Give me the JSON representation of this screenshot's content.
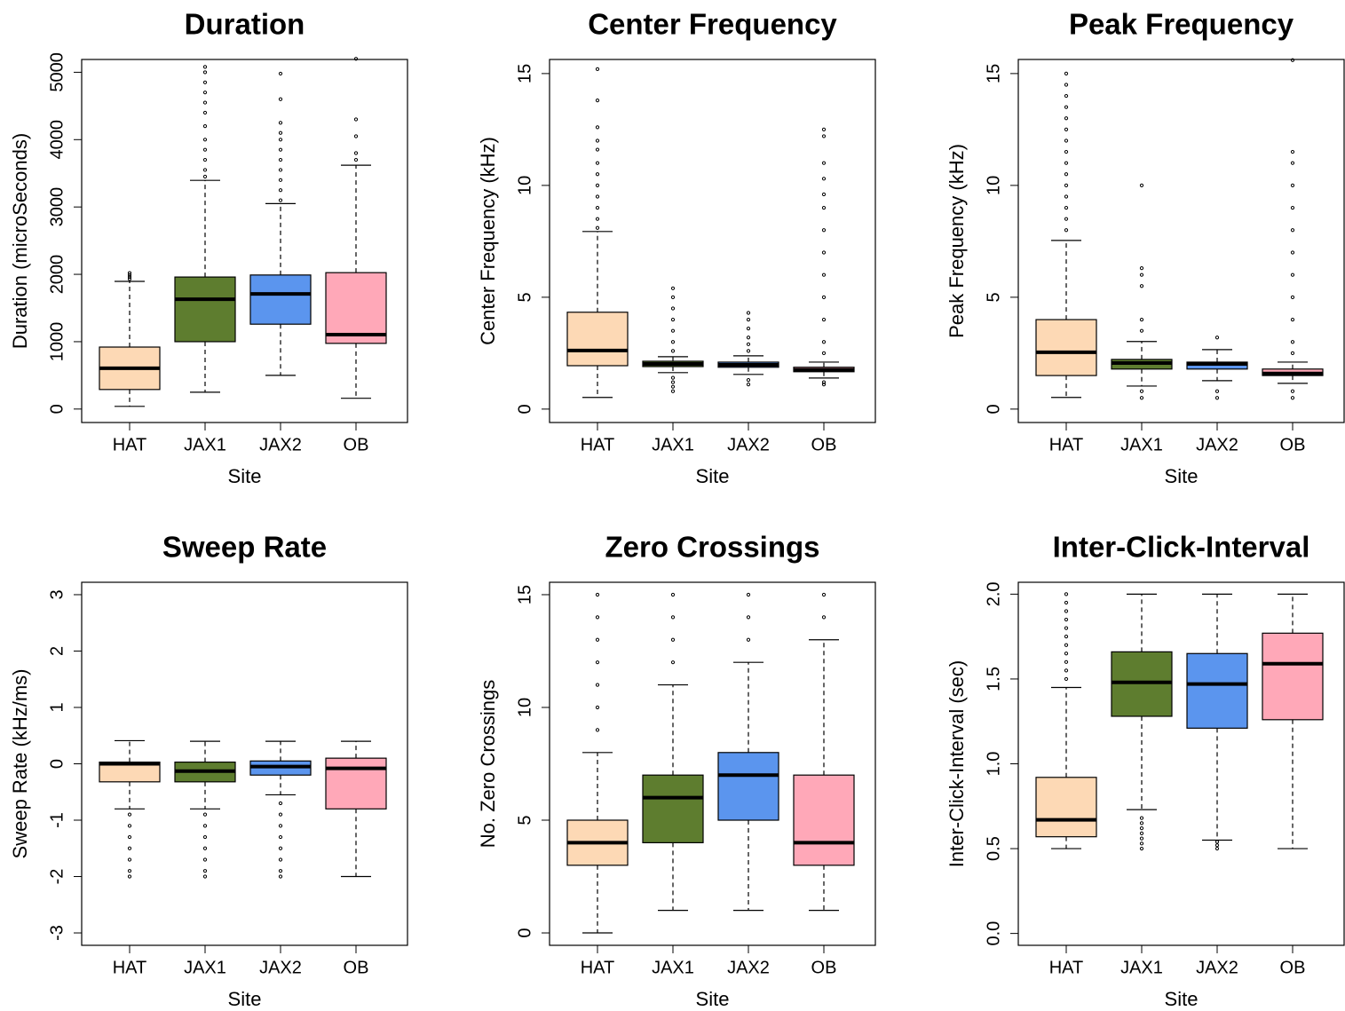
{
  "chart_data": [
    {
      "type": "box",
      "title": "Duration",
      "xlabel": "Site",
      "ylabel": "Duration (microSeconds)",
      "categories": [
        "HAT",
        "JAX1",
        "JAX2",
        "OB"
      ],
      "colors": [
        "#fdd9b5",
        "#5e7d2f",
        "#5b95ee",
        "#ffa8b8"
      ],
      "ylim": [
        -200,
        5190
      ],
      "yticks": [
        0,
        1000,
        2000,
        3000,
        4000,
        5000
      ],
      "boxes": [
        {
          "whisker_low": 40,
          "q1": 290,
          "median": 605,
          "q3": 920,
          "whisker_high": 1895,
          "outliers": [
            1930,
            1960,
            1990,
            2020
          ]
        },
        {
          "whisker_low": 250,
          "q1": 1000,
          "median": 1630,
          "q3": 1960,
          "whisker_high": 3395,
          "outliers": [
            3450,
            3550,
            3700,
            3850,
            4000,
            4200,
            4400,
            4550,
            4700,
            4850,
            5000,
            5080
          ]
        },
        {
          "whisker_low": 500,
          "q1": 1260,
          "median": 1710,
          "q3": 1990,
          "whisker_high": 3050,
          "outliers": [
            3100,
            3250,
            3400,
            3550,
            3700,
            3850,
            4000,
            4100,
            4250,
            4600,
            4980
          ]
        },
        {
          "whisker_low": 160,
          "q1": 975,
          "median": 1105,
          "q3": 2025,
          "whisker_high": 3620,
          "outliers": [
            3700,
            3800,
            4050,
            4300,
            5200
          ]
        }
      ]
    },
    {
      "type": "box",
      "title": "Center Frequency",
      "xlabel": "Site",
      "ylabel": "Center Frequency (kHz)",
      "categories": [
        "HAT",
        "JAX1",
        "JAX2",
        "OB"
      ],
      "colors": [
        "#fdd9b5",
        "#5e7d2f",
        "#5b95ee",
        "#ffa8b8"
      ],
      "ylim": [
        -0.6,
        15.63
      ],
      "yticks": [
        0,
        5,
        10,
        15
      ],
      "boxes": [
        {
          "whisker_low": 0.52,
          "q1": 1.94,
          "median": 2.62,
          "q3": 4.33,
          "whisker_high": 7.94,
          "outliers": [
            8.1,
            8.5,
            9,
            9.5,
            10,
            10.5,
            11,
            11.6,
            12,
            12.6,
            13.8,
            15.2
          ]
        },
        {
          "whisker_low": 1.63,
          "q1": 1.9,
          "median": 2.02,
          "q3": 2.14,
          "whisker_high": 2.34,
          "outliers": [
            0.8,
            1.0,
            1.2,
            1.4,
            2.6,
            3,
            3.5,
            4,
            4.5,
            5,
            5.4
          ]
        },
        {
          "whisker_low": 1.55,
          "q1": 1.87,
          "median": 1.98,
          "q3": 2.1,
          "whisker_high": 2.38,
          "outliers": [
            1.1,
            1.3,
            2.6,
            2.9,
            3.2,
            3.6,
            4.0,
            4.3
          ]
        },
        {
          "whisker_low": 1.39,
          "q1": 1.67,
          "median": 1.75,
          "q3": 1.87,
          "whisker_high": 2.1,
          "outliers": [
            1.1,
            1.2,
            2.5,
            3,
            4,
            5,
            6,
            7,
            8,
            9,
            9.6,
            10.3,
            11,
            12.2,
            12.5
          ]
        }
      ]
    },
    {
      "type": "box",
      "title": "Peak Frequency",
      "xlabel": "Site",
      "ylabel": "Peak Frequency (kHz)",
      "categories": [
        "HAT",
        "JAX1",
        "JAX2",
        "OB"
      ],
      "colors": [
        "#fdd9b5",
        "#5e7d2f",
        "#5b95ee",
        "#ffa8b8"
      ],
      "ylim": [
        -0.6,
        15.63
      ],
      "yticks": [
        0,
        5,
        10,
        15
      ],
      "boxes": [
        {
          "whisker_low": 0.52,
          "q1": 1.5,
          "median": 2.54,
          "q3": 4.0,
          "whisker_high": 7.54,
          "outliers": [
            8,
            8.5,
            9,
            9.5,
            10,
            10.5,
            11,
            11.5,
            12,
            12.5,
            13,
            13.5,
            14,
            14.5,
            15
          ]
        },
        {
          "whisker_low": 1.03,
          "q1": 1.79,
          "median": 2.06,
          "q3": 2.22,
          "whisker_high": 3.02,
          "outliers": [
            0.5,
            0.8,
            3.5,
            4,
            5.5,
            6,
            6.3,
            10
          ]
        },
        {
          "whisker_low": 1.27,
          "q1": 1.79,
          "median": 2.02,
          "q3": 2.1,
          "whisker_high": 2.66,
          "outliers": [
            0.5,
            0.8,
            3.2
          ]
        },
        {
          "whisker_low": 1.15,
          "q1": 1.5,
          "median": 1.59,
          "q3": 1.79,
          "whisker_high": 2.1,
          "outliers": [
            0.5,
            0.8,
            2.5,
            3,
            4,
            5,
            6,
            7,
            8,
            9,
            10,
            11,
            11.5,
            15.6
          ]
        }
      ]
    },
    {
      "type": "box",
      "title": "Sweep Rate",
      "xlabel": "Site",
      "ylabel": "Sweep Rate (kHz/ms)",
      "categories": [
        "HAT",
        "JAX1",
        "JAX2",
        "OB"
      ],
      "colors": [
        "#fdd9b5",
        "#5e7d2f",
        "#5b95ee",
        "#ffa8b8"
      ],
      "ylim": [
        -3.22,
        3.22
      ],
      "yticks": [
        -3,
        -2,
        -1,
        0,
        1,
        2,
        3
      ],
      "boxes": [
        {
          "whisker_low": -0.8,
          "q1": -0.32,
          "median": 0,
          "q3": 0.03,
          "whisker_high": 0.41,
          "outliers": [
            -0.9,
            -1.1,
            -1.3,
            -1.5,
            -1.7,
            -1.9,
            -2
          ]
        },
        {
          "whisker_low": -0.8,
          "q1": -0.32,
          "median": -0.13,
          "q3": 0.03,
          "whisker_high": 0.4,
          "outliers": [
            -0.9,
            -1.1,
            -1.3,
            -1.5,
            -1.7,
            -1.9,
            -2
          ]
        },
        {
          "whisker_low": -0.55,
          "q1": -0.2,
          "median": -0.05,
          "q3": 0.05,
          "whisker_high": 0.4,
          "outliers": [
            -0.7,
            -0.9,
            -1.1,
            -1.3,
            -1.5,
            -1.7,
            -1.9,
            -2
          ]
        },
        {
          "whisker_low": -2,
          "q1": -0.8,
          "median": -0.08,
          "q3": 0.1,
          "whisker_high": 0.4,
          "outliers": []
        }
      ]
    },
    {
      "type": "box",
      "title": "Zero Crossings",
      "xlabel": "Site",
      "ylabel": "No. Zero Crossings",
      "categories": [
        "HAT",
        "JAX1",
        "JAX2",
        "OB"
      ],
      "colors": [
        "#fdd9b5",
        "#5e7d2f",
        "#5b95ee",
        "#ffa8b8"
      ],
      "ylim": [
        -0.55,
        15.55
      ],
      "yticks": [
        0,
        5,
        10,
        15
      ],
      "boxes": [
        {
          "whisker_low": 0,
          "q1": 3,
          "median": 4,
          "q3": 5,
          "whisker_high": 8,
          "outliers": [
            9,
            10,
            11,
            12,
            13,
            14,
            15
          ]
        },
        {
          "whisker_low": 1,
          "q1": 4,
          "median": 6,
          "q3": 7,
          "whisker_high": 11,
          "outliers": [
            12,
            13,
            14,
            15
          ]
        },
        {
          "whisker_low": 1,
          "q1": 5,
          "median": 7,
          "q3": 8,
          "whisker_high": 12,
          "outliers": [
            13,
            14,
            15
          ]
        },
        {
          "whisker_low": 1,
          "q1": 3,
          "median": 4,
          "q3": 7,
          "whisker_high": 13,
          "outliers": [
            14,
            15
          ]
        }
      ]
    },
    {
      "type": "box",
      "title": "Inter-Click-Interval",
      "xlabel": "Site",
      "ylabel": "Inter-Click-Interval (sec)",
      "categories": [
        "HAT",
        "JAX1",
        "JAX2",
        "OB"
      ],
      "colors": [
        "#fdd9b5",
        "#5e7d2f",
        "#5b95ee",
        "#ffa8b8"
      ],
      "ylim": [
        -0.07,
        2.07
      ],
      "yticks": [
        {
          "value": 0,
          "label": "0.0"
        },
        0.5,
        {
          "value": 1,
          "label": "1.0"
        },
        1.5,
        {
          "value": 2,
          "label": "2.0"
        }
      ],
      "boxes": [
        {
          "whisker_low": 0.5,
          "q1": 0.57,
          "median": 0.67,
          "q3": 0.92,
          "whisker_high": 1.45,
          "outliers": [
            1.5,
            1.55,
            1.6,
            1.65,
            1.7,
            1.75,
            1.8,
            1.85,
            1.9,
            1.95,
            2.0
          ]
        },
        {
          "whisker_low": 0.73,
          "q1": 1.28,
          "median": 1.48,
          "q3": 1.66,
          "whisker_high": 2.0,
          "outliers": [
            0.5,
            0.53,
            0.56,
            0.59,
            0.62,
            0.65,
            0.68
          ]
        },
        {
          "whisker_low": 0.55,
          "q1": 1.21,
          "median": 1.47,
          "q3": 1.65,
          "whisker_high": 2.0,
          "outliers": [
            0.5,
            0.52,
            0.54
          ]
        },
        {
          "whisker_low": 0.5,
          "q1": 1.26,
          "median": 1.59,
          "q3": 1.77,
          "whisker_high": 2.0,
          "outliers": []
        }
      ]
    }
  ]
}
